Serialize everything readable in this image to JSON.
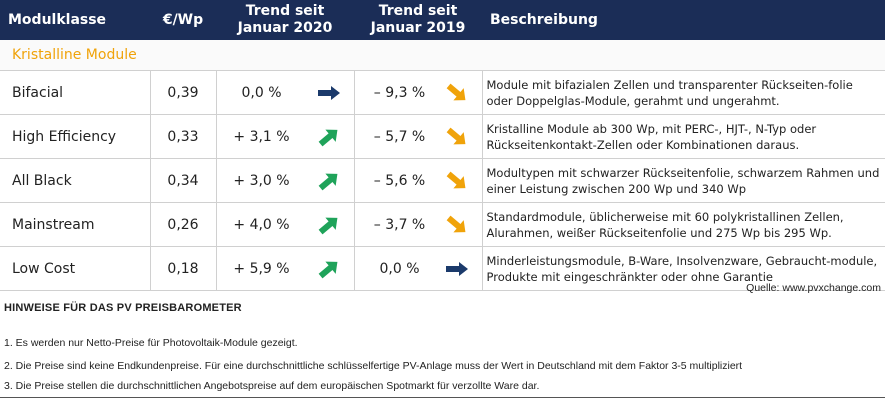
{
  "header": {
    "col_module": "Modulklasse",
    "col_price": "€/Wp",
    "col_trend2020": "Trend seit Januar 2020",
    "col_trend2019": "Trend seit Januar 2019",
    "col_desc": "Beschreibung"
  },
  "section_title": "Kristalline Module",
  "rows": [
    {
      "name": "Bifacial",
      "price": "0,39",
      "t2020": "0,0 %",
      "a2020": "right-arrow-icon",
      "t2019": "– 9,3 %",
      "a2019": "down-arrow-icon",
      "desc": "Module mit bifazialen Zellen und transparenter Rückseiten-folie oder Doppelglas-Module, gerahmt und ungerahmt."
    },
    {
      "name": "High Efficiency",
      "price": "0,33",
      "t2020": "+ 3,1 %",
      "a2020": "up-arrow-icon",
      "t2019": "– 5,7 %",
      "a2019": "down-arrow-icon",
      "desc": "Kristalline Module ab 300 Wp, mit PERC-, HJT-, N-Typ oder Rückseitenkontakt-Zellen oder Kombinationen daraus."
    },
    {
      "name": "All Black",
      "price": "0,34",
      "t2020": "+ 3,0 %",
      "a2020": "up-arrow-icon",
      "t2019": "– 5,6 %",
      "a2019": "down-arrow-icon",
      "desc": "Modultypen mit schwarzer Rückseitenfolie, schwarzem Rahmen und einer Leistung  zwischen 200 Wp und 340 Wp"
    },
    {
      "name": "Mainstream",
      "price": "0,26",
      "t2020": "+ 4,0 %",
      "a2020": "up-arrow-icon",
      "t2019": "– 3,7 %",
      "a2019": "down-arrow-icon",
      "desc": "Standardmodule, üblicherweise mit 60 polykristallinen Zellen, Alurahmen, weißer Rückseitenfolie und 275 Wp bis 295 Wp."
    },
    {
      "name": "Low Cost",
      "price": "0,18",
      "t2020": "+ 5,9 %",
      "a2020": "up-arrow-icon",
      "t2019": "0,0 %",
      "a2019": "right-arrow-icon",
      "desc": "Minderleistungsmodule, B-Ware, Insolvenzware, Gebraucht-module, Produkte mit eingeschränkter oder ohne Garantie"
    }
  ],
  "source": "Quelle: www.pvxchange.com",
  "notes_title": "HINWEISE FÜR DAS PV PREISBAROMETER",
  "notes": [
    "1.  Es werden nur Netto-Preise für Photovoltaik-Module gezeigt.",
    "2. Die Preise sind keine Endkundenpreise. Für eine durchschnittliche schlüsselfertige PV-Anlage muss der Wert in Deutschland mit dem Faktor 3-5 multipliziert",
    "3. Die Preise stellen die durchschnittlichen Angebotspreise auf dem europäischen Spotmarkt für verzollte Ware dar."
  ],
  "colors": {
    "header_bg": "#1b2d57",
    "accent": "#f0a30a",
    "up": "#1fa35a",
    "down": "#f0a30a",
    "flat": "#1b3a6b"
  }
}
